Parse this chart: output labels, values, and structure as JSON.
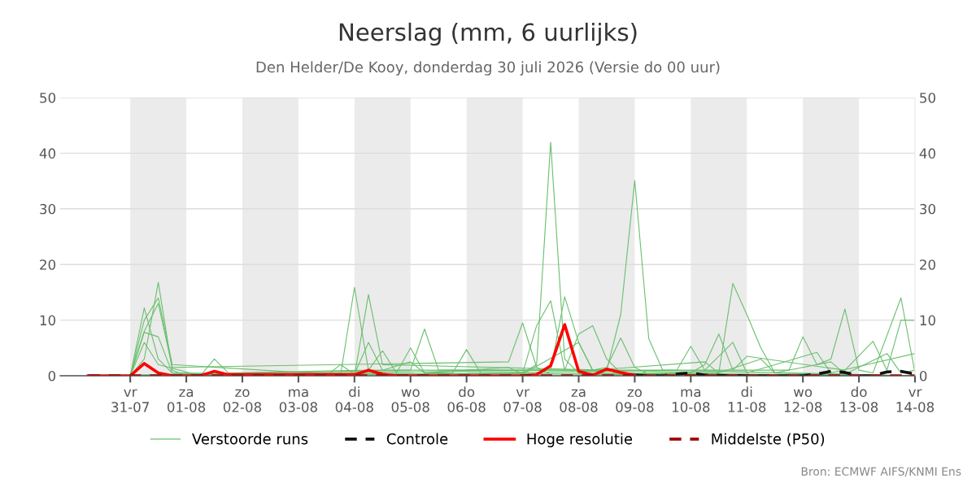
{
  "chart_data": {
    "type": "line",
    "title": "Neerslag (mm, 6 uurlijks)",
    "subtitle": "Den Helder/De Kooy, donderdag 30 juli 2026 (Versie do 00 uur)",
    "annotations": [
      "Bron: ECMWF AIFS/KNMI Ens"
    ],
    "xlim": [
      "2026-07-29T18:00",
      "2026-08-14"
    ],
    "xticks": [
      {
        "value": "2026-07-31",
        "label": "vr\n31-07"
      },
      {
        "value": "2026-08-01",
        "label": "za\n01-08"
      },
      {
        "value": "2026-08-02",
        "label": "zo\n02-08"
      },
      {
        "value": "2026-08-03",
        "label": "ma\n03-08"
      },
      {
        "value": "2026-08-04",
        "label": "di\n04-08"
      },
      {
        "value": "2026-08-05",
        "label": "wo\n05-08"
      },
      {
        "value": "2026-08-06",
        "label": "do\n06-08"
      },
      {
        "value": "2026-08-07",
        "label": "vr\n07-08"
      },
      {
        "value": "2026-08-08",
        "label": "za\n08-08"
      },
      {
        "value": "2026-08-09",
        "label": "zo\n09-08"
      },
      {
        "value": "2026-08-10",
        "label": "ma\n10-08"
      },
      {
        "value": "2026-08-11",
        "label": "di\n11-08"
      },
      {
        "value": "2026-08-12",
        "label": "wo\n12-08"
      },
      {
        "value": "2026-08-13",
        "label": "do\n13-08"
      },
      {
        "value": "2026-08-14",
        "label": "vr\n14-08"
      }
    ],
    "ylim": [
      0,
      50
    ],
    "yticks": [
      0,
      10,
      20,
      30,
      40,
      50
    ],
    "y2lim": [
      0,
      50
    ],
    "y2ticks": [
      0,
      10,
      20,
      30,
      40,
      50
    ],
    "grid": "y",
    "legend": "bottom",
    "bands": [
      {
        "axis": "x",
        "from": "2026-07-31",
        "to": "2026-08-01",
        "color": "#ebebeb"
      },
      {
        "axis": "x",
        "from": "2026-08-02",
        "to": "2026-08-03",
        "color": "#ebebeb"
      },
      {
        "axis": "x",
        "from": "2026-08-04",
        "to": "2026-08-05",
        "color": "#ebebeb"
      },
      {
        "axis": "x",
        "from": "2026-08-06",
        "to": "2026-08-07",
        "color": "#ebebeb"
      },
      {
        "axis": "x",
        "from": "2026-08-08",
        "to": "2026-08-09",
        "color": "#ebebeb"
      },
      {
        "axis": "x",
        "from": "2026-08-10",
        "to": "2026-08-11",
        "color": "#ebebeb"
      },
      {
        "axis": "x",
        "from": "2026-08-12",
        "to": "2026-08-13",
        "color": "#ebebeb"
      }
    ],
    "series": [
      {
        "name": "Verstoorde runs",
        "color": "#6abf6e",
        "x": [
          "2026-07-30T06:00",
          "2026-07-31T00:00",
          "2026-07-31T06:00",
          "2026-07-31T12:00",
          "2026-07-31T18:00",
          "2026-08-01T00:00",
          "2026-08-07T00:00",
          "2026-08-07T06:00",
          "2026-08-07T12:00",
          "2026-08-07T18:00",
          "2026-08-08T00:00",
          "2026-08-14T00:00"
        ],
        "values": [
          0,
          0,
          3,
          16.8,
          1,
          0,
          0.5,
          2,
          42,
          3,
          0.5,
          0
        ]
      },
      {
        "color": "#6abf6e",
        "x": [
          "2026-07-30T06:00",
          "2026-07-31T00:00",
          "2026-07-31T06:00",
          "2026-07-31T12:00",
          "2026-07-31T18:00",
          "2026-08-03T18:00",
          "2026-08-04T00:00",
          "2026-08-04T06:00",
          "2026-08-08T12:00",
          "2026-08-08T18:00",
          "2026-08-09T00:00",
          "2026-08-09T06:00",
          "2026-08-09T12:00",
          "2026-08-14T00:00"
        ],
        "values": [
          0,
          0,
          12.2,
          3,
          0.5,
          0,
          15.9,
          1,
          1,
          11,
          35.1,
          6.7,
          1,
          0
        ]
      },
      {
        "color": "#6abf6e",
        "x": [
          "2026-07-30T06:00",
          "2026-07-31T00:00",
          "2026-07-31T06:00",
          "2026-07-31T12:00",
          "2026-07-31T18:00",
          "2026-08-04T00:00",
          "2026-08-04T06:00",
          "2026-08-04T12:00",
          "2026-08-10T12:00",
          "2026-08-10T18:00",
          "2026-08-11T00:00",
          "2026-08-11T06:00",
          "2026-08-11T12:00",
          "2026-08-14T00:00"
        ],
        "values": [
          0,
          0,
          10,
          14,
          2,
          0,
          14.6,
          2,
          0.5,
          16.6,
          11,
          5,
          0.5,
          0
        ]
      },
      {
        "color": "#6abf6e",
        "x": [
          "2026-07-30T06:00",
          "2026-07-31T00:00",
          "2026-07-31T06:00",
          "2026-07-31T12:00",
          "2026-07-31T18:00",
          "2026-08-06T18:00",
          "2026-08-07T00:00",
          "2026-08-07T06:00",
          "2026-08-07T12:00",
          "2026-08-14T00:00"
        ],
        "values": [
          0,
          0,
          8,
          13,
          1.5,
          2.5,
          9.5,
          1.5,
          0.3,
          0
        ]
      },
      {
        "color": "#6abf6e",
        "x": [
          "2026-07-30T06:00",
          "2026-08-07T00:00",
          "2026-08-07T06:00",
          "2026-08-07T12:00",
          "2026-08-07T18:00",
          "2026-08-08T00:00",
          "2026-08-08T06:00",
          "2026-08-08T12:00",
          "2026-08-08T18:00",
          "2026-08-14T00:00"
        ],
        "values": [
          0,
          0.5,
          9,
          13.5,
          1,
          7.5,
          9,
          3,
          0.5,
          0
        ]
      },
      {
        "color": "#6abf6e",
        "x": [
          "2026-07-30T06:00",
          "2026-08-07T12:00",
          "2026-08-07T18:00",
          "2026-08-08T00:00",
          "2026-08-08T06:00",
          "2026-08-08T12:00",
          "2026-08-08T18:00",
          "2026-08-09T00:00",
          "2026-08-09T06:00",
          "2026-08-14T00:00"
        ],
        "values": [
          0,
          1,
          14.2,
          6,
          1,
          1.5,
          6.8,
          1.5,
          0.3,
          0
        ]
      },
      {
        "color": "#6abf6e",
        "x": [
          "2026-07-30T06:00",
          "2026-08-05T00:00",
          "2026-08-05T06:00",
          "2026-08-05T12:00",
          "2026-08-11T18:00",
          "2026-08-12T00:00",
          "2026-08-12T06:00",
          "2026-08-12T12:00",
          "2026-08-12T18:00",
          "2026-08-13T00:00",
          "2026-08-13T06:00",
          "2026-08-13T18:00",
          "2026-08-14T00:00"
        ],
        "values": [
          0,
          1,
          8.4,
          1,
          1,
          7,
          2,
          3,
          12,
          1,
          0.5,
          14,
          0.5
        ]
      },
      {
        "color": "#6abf6e",
        "x": [
          "2026-07-30T06:00",
          "2026-08-10T00:00",
          "2026-08-10T06:00",
          "2026-08-10T12:00",
          "2026-08-10T18:00",
          "2026-08-11T00:00",
          "2026-08-12T18:00",
          "2026-08-13T06:00",
          "2026-08-13T12:00",
          "2026-08-13T18:00",
          "2026-08-14T00:00"
        ],
        "values": [
          0,
          0.5,
          2,
          7.5,
          1,
          3.5,
          1,
          6.2,
          1,
          10,
          10
        ]
      },
      {
        "color": "#6abf6e",
        "x": [
          "2026-07-30T06:00",
          "2026-07-31T00:00",
          "2026-07-31T06:00",
          "2026-07-31T12:00",
          "2026-08-01T06:00",
          "2026-08-01T12:00",
          "2026-08-01T18:00",
          "2026-08-04T06:00",
          "2026-08-04T12:00",
          "2026-08-04T18:00",
          "2026-08-05T00:00",
          "2026-08-05T06:00",
          "2026-08-05T18:00",
          "2026-08-06T00:00",
          "2026-08-06T06:00",
          "2026-08-09T18:00",
          "2026-08-10T00:00",
          "2026-08-10T06:00",
          "2026-08-10T18:00",
          "2026-08-11T00:00",
          "2026-08-12T06:00",
          "2026-08-12T12:00",
          "2026-08-14T00:00"
        ],
        "values": [
          0,
          0,
          6,
          2,
          0,
          3,
          0.5,
          1,
          4.5,
          0.5,
          5,
          0.5,
          0.5,
          4.7,
          0.5,
          1,
          5.3,
          1,
          6,
          0.5,
          4.2,
          0.5,
          4
        ]
      },
      {
        "color": "#6abf6e",
        "x": [
          "2026-07-30T06:00",
          "2026-07-31T00:00",
          "2026-07-31T06:00",
          "2026-07-31T12:00",
          "2026-07-31T18:00",
          "2026-08-03T12:00",
          "2026-08-03T18:00",
          "2026-08-04T00:00",
          "2026-08-04T06:00",
          "2026-08-04T12:00",
          "2026-08-05T00:00",
          "2026-08-05T06:00",
          "2026-08-06T18:00",
          "2026-08-07T00:00",
          "2026-08-08T00:00",
          "2026-08-08T06:00",
          "2026-08-10T06:00",
          "2026-08-10T12:00",
          "2026-08-11T06:00",
          "2026-08-11T12:00",
          "2026-08-12T12:00",
          "2026-08-12T18:00",
          "2026-08-13T12:00",
          "2026-08-13T18:00",
          "2026-08-14T00:00"
        ],
        "values": [
          0,
          0,
          7.8,
          7,
          0.5,
          0,
          2,
          0.3,
          6,
          1,
          2.5,
          0.5,
          1.5,
          0.3,
          6,
          1,
          2.5,
          0.5,
          3,
          0.5,
          2.5,
          0.3,
          4,
          0.5,
          1
        ]
      },
      {
        "name": "Controle",
        "color": "#111111",
        "line_style": "dashed",
        "x": [
          "2026-08-09T00:00",
          "2026-08-09T06:00",
          "2026-08-09T12:00",
          "2026-08-09T18:00",
          "2026-08-10T00:00",
          "2026-08-10T06:00",
          "2026-08-11T00:00",
          "2026-08-12T00:00",
          "2026-08-12T06:00",
          "2026-08-12T12:00",
          "2026-08-12T18:00",
          "2026-08-13T00:00",
          "2026-08-13T06:00",
          "2026-08-13T12:00",
          "2026-08-13T18:00",
          "2026-08-14T00:00"
        ],
        "values": [
          0.1,
          0,
          0,
          0.3,
          0.5,
          0.1,
          0,
          0,
          0.3,
          0.8,
          0.6,
          0,
          0,
          0.7,
          0.8,
          0.3
        ]
      },
      {
        "name": "Hoge resolutie",
        "color": "#ff0000",
        "x": [
          "2026-07-30T06:00",
          "2026-07-31T00:00",
          "2026-07-31T06:00",
          "2026-07-31T12:00",
          "2026-07-31T18:00",
          "2026-08-01T06:00",
          "2026-08-01T12:00",
          "2026-08-01T18:00",
          "2026-08-04T00:00",
          "2026-08-04T06:00",
          "2026-08-04T12:00",
          "2026-08-04T18:00",
          "2026-08-07T00:00",
          "2026-08-07T06:00",
          "2026-08-07T12:00",
          "2026-08-07T18:00",
          "2026-08-08T00:00",
          "2026-08-08T06:00",
          "2026-08-08T12:00",
          "2026-08-08T18:00",
          "2026-08-09T00:00"
        ],
        "values": [
          0,
          0,
          2.2,
          0.5,
          0,
          0,
          0.8,
          0.2,
          0.2,
          1,
          0.3,
          0,
          0,
          0.2,
          1.8,
          9.2,
          0.8,
          0.1,
          1.2,
          0.6,
          0.1
        ]
      },
      {
        "name": "Middelste (P50)",
        "color": "#a00000",
        "line_style": "dashed",
        "x": [
          "2026-07-30T06:00",
          "2026-08-14T00:00"
        ],
        "values": [
          0,
          0
        ]
      }
    ]
  }
}
